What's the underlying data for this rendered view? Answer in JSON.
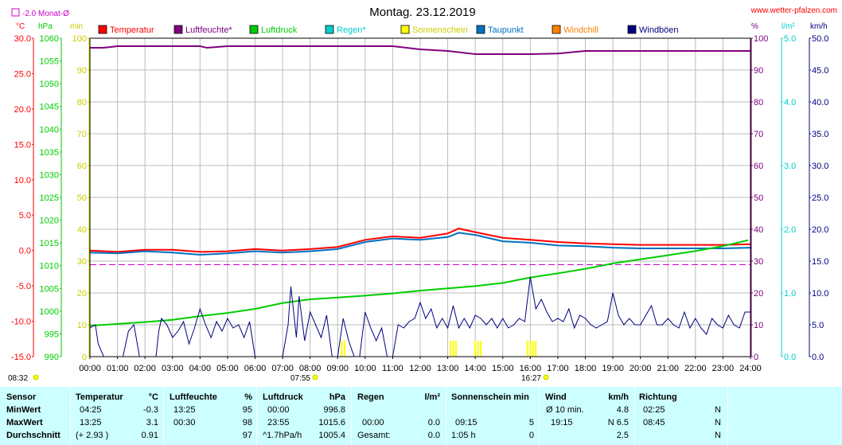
{
  "header": {
    "title": "Montag. 23.12.2019",
    "website": "www.wetter-pfalzen.com",
    "monthly_avg_label": "-2.0 Monat-Ø"
  },
  "axes": {
    "left_units": [
      "°C",
      "hPa",
      "min"
    ],
    "right_units": [
      "%",
      "l/m²",
      "km/h"
    ]
  },
  "legend": [
    {
      "label": "Temperatur",
      "color": "#ff0000"
    },
    {
      "label": "Luftfeuchte*",
      "color": "#800080"
    },
    {
      "label": "Luftdruck",
      "color": "#00cc00"
    },
    {
      "label": "Regen*",
      "color": "#00cccc"
    },
    {
      "label": "Sonnenschein",
      "color": "#ffff00"
    },
    {
      "label": "Taupunkt",
      "color": "#0070c0"
    },
    {
      "label": "Windchill",
      "color": "#ff8000"
    },
    {
      "label": "Windböen",
      "color": "#000080"
    }
  ],
  "sun": {
    "sunrise": "07:55",
    "sunset": "16:27",
    "daylength": "08:32"
  },
  "chart_data": {
    "type": "line",
    "title": "Montag. 23.12.2019",
    "x_ticks": [
      "00:00",
      "01:00",
      "02:00",
      "03:00",
      "04:00",
      "05:00",
      "06:00",
      "07:00",
      "08:00",
      "09:00",
      "10:00",
      "11:00",
      "12:00",
      "13:00",
      "14:00",
      "15:00",
      "16:00",
      "17:00",
      "18:00",
      "19:00",
      "20:00",
      "21:00",
      "22:00",
      "23:00",
      "24:00"
    ],
    "xlim": [
      0,
      24
    ],
    "axes_ranges": {
      "temperature_c": [
        -15,
        30
      ],
      "pressure_hpa": [
        990,
        1060
      ],
      "sunshine_min": [
        0,
        100
      ],
      "humidity_pct": [
        0,
        100
      ],
      "rain_lm2": [
        0,
        5
      ],
      "wind_kmh": [
        0,
        50
      ]
    },
    "tick_labels": {
      "temperature_c": [
        "30.0",
        "25.0",
        "20.0",
        "15.0",
        "10.0",
        "5.0",
        "0.0",
        "-5.0",
        "-10.0",
        "-15.0"
      ],
      "pressure_hpa": [
        "1060",
        "1055",
        "1050",
        "1045",
        "1040",
        "1035",
        "1030",
        "1025",
        "1020",
        "1015",
        "1010",
        "1005",
        "1000",
        "995",
        "990"
      ],
      "sunshine_min": [
        "100",
        "90",
        "80",
        "70",
        "60",
        "50",
        "40",
        "30",
        "20",
        "10",
        "0"
      ],
      "humidity_pct": [
        "100",
        "90",
        "80",
        "70",
        "60",
        "50",
        "40",
        "30",
        "20",
        "10",
        "0"
      ],
      "rain_lm2": [
        "5.0",
        "4.0",
        "3.0",
        "2.0",
        "1.0",
        "0.0"
      ],
      "wind_kmh": [
        "50.0",
        "45.0",
        "40.0",
        "35.0",
        "30.0",
        "25.0",
        "20.0",
        "15.0",
        "10.0",
        "5.0",
        "0.0"
      ]
    },
    "monthly_avg_temp": -2.0,
    "series": [
      {
        "name": "Temperatur",
        "axis": "temperature_c",
        "color": "#ff0000",
        "x": [
          0,
          1,
          2,
          3,
          4,
          5,
          6,
          7,
          8,
          9,
          10,
          11,
          12,
          13,
          13.4,
          14,
          15,
          16,
          17,
          18,
          19,
          20,
          21,
          22,
          23,
          24
        ],
        "y": [
          0.0,
          -0.2,
          0.1,
          0.1,
          -0.2,
          -0.1,
          0.2,
          0.0,
          0.2,
          0.5,
          1.5,
          2.0,
          1.8,
          2.4,
          3.1,
          2.6,
          1.8,
          1.5,
          1.2,
          1.0,
          0.9,
          0.8,
          0.8,
          0.8,
          0.8,
          0.9
        ]
      },
      {
        "name": "Taupunkt",
        "axis": "temperature_c",
        "color": "#0070c0",
        "x": [
          0,
          1,
          2,
          3,
          4,
          5,
          6,
          7,
          8,
          9,
          10,
          11,
          12,
          13,
          13.4,
          14,
          15,
          16,
          17,
          18,
          19,
          20,
          21,
          22,
          23,
          24
        ],
        "y": [
          -0.3,
          -0.4,
          -0.1,
          -0.3,
          -0.6,
          -0.4,
          -0.1,
          -0.3,
          -0.1,
          0.2,
          1.2,
          1.7,
          1.5,
          1.9,
          2.5,
          2.2,
          1.3,
          1.1,
          0.7,
          0.6,
          0.4,
          0.3,
          0.3,
          0.3,
          0.3,
          0.4
        ]
      },
      {
        "name": "Luftfeuchte",
        "axis": "humidity_pct",
        "color": "#800080",
        "x": [
          0,
          0.5,
          1,
          2,
          3,
          4,
          4.25,
          5,
          6,
          7,
          8,
          9,
          10,
          11,
          11.5,
          12,
          13,
          14,
          14.5,
          15,
          16,
          17,
          18,
          19,
          20,
          21,
          22,
          23,
          24
        ],
        "y": [
          97,
          97,
          97.5,
          97.5,
          97.5,
          97.5,
          97,
          97.5,
          97.5,
          97.5,
          97.5,
          97.5,
          97.5,
          97.5,
          97,
          96.5,
          96,
          95,
          95,
          95,
          95,
          95.2,
          96,
          96,
          96,
          96,
          96,
          96,
          96
        ]
      },
      {
        "name": "Luftdruck",
        "axis": "pressure_hpa",
        "color": "#00cc00",
        "x": [
          0,
          1,
          2,
          3,
          4,
          5,
          6,
          7,
          8,
          9,
          10,
          11,
          12,
          13,
          14,
          15,
          16,
          17,
          18,
          19,
          20,
          21,
          22,
          23,
          23.92
        ],
        "y": [
          996.8,
          997.2,
          997.6,
          998.1,
          998.9,
          999.6,
          1000.5,
          1001.8,
          1002.6,
          1003.0,
          1003.4,
          1003.9,
          1004.5,
          1005.0,
          1005.5,
          1006.2,
          1007.4,
          1008.3,
          1009.3,
          1010.5,
          1011.4,
          1012.3,
          1013.2,
          1014.3,
          1015.6
        ]
      },
      {
        "name": "Windböen",
        "axis": "wind_kmh",
        "color": "#000080",
        "x": [
          0,
          0.2,
          0.3,
          0.5,
          1.2,
          1.4,
          1.6,
          1.8,
          2.0,
          2.4,
          2.5,
          2.6,
          2.8,
          3.0,
          3.2,
          3.4,
          3.6,
          3.8,
          4.0,
          4.2,
          4.4,
          4.6,
          4.8,
          5.0,
          5.2,
          5.4,
          5.6,
          5.8,
          6.0,
          6.2,
          6.4,
          6.6,
          6.8,
          7.0,
          7.2,
          7.3,
          7.5,
          7.6,
          7.8,
          8.0,
          8.2,
          8.4,
          8.6,
          8.8,
          9.0,
          9.2,
          9.4,
          9.6,
          9.8,
          10.0,
          10.2,
          10.4,
          10.6,
          10.8,
          11.0,
          11.2,
          11.4,
          11.6,
          11.8,
          12.0,
          12.2,
          12.4,
          12.6,
          12.8,
          13.0,
          13.2,
          13.4,
          13.6,
          13.8,
          14.0,
          14.2,
          14.4,
          14.6,
          14.8,
          15.0,
          15.2,
          15.4,
          15.6,
          15.8,
          16.0,
          16.2,
          16.4,
          16.6,
          16.8,
          17.0,
          17.2,
          17.4,
          17.6,
          17.8,
          18.0,
          18.2,
          18.4,
          18.6,
          18.8,
          19.0,
          19.2,
          19.4,
          19.6,
          19.8,
          20.0,
          20.2,
          20.4,
          20.6,
          20.8,
          21.0,
          21.2,
          21.4,
          21.6,
          21.8,
          22.0,
          22.2,
          22.4,
          22.6,
          22.8,
          23.0,
          23.2,
          23.4,
          23.6,
          23.8,
          24.0
        ],
        "y": [
          4.5,
          5.0,
          2.0,
          0,
          0,
          4.0,
          5.0,
          0,
          0,
          0,
          4.0,
          6.0,
          5.0,
          3.0,
          4.0,
          5.5,
          2.0,
          4.5,
          7.5,
          5.0,
          3.0,
          5.5,
          4.0,
          6.0,
          4.5,
          5.0,
          3.0,
          5.5,
          0,
          0,
          0,
          0,
          0,
          0,
          5.0,
          11.0,
          3.0,
          9.5,
          2.5,
          7.0,
          5.0,
          3.0,
          6.5,
          0,
          0,
          6.0,
          2.5,
          0,
          0,
          7.0,
          4.5,
          2.5,
          4.5,
          0,
          0,
          5.0,
          4.5,
          5.5,
          6.0,
          8.5,
          6.0,
          7.5,
          4.5,
          6.0,
          4.5,
          8.0,
          4.5,
          6.0,
          4.5,
          6.5,
          6.0,
          5.0,
          6.0,
          4.5,
          6.0,
          4.5,
          5.0,
          6.0,
          5.5,
          12.5,
          7.5,
          9.0,
          7.0,
          5.5,
          6.0,
          5.5,
          7.5,
          4.5,
          6.5,
          6.0,
          5.0,
          4.5,
          5.0,
          5.5,
          10.0,
          6.5,
          5.0,
          6.0,
          5.0,
          5.0,
          6.5,
          8.0,
          5.0,
          5.0,
          6.0,
          5.0,
          4.5,
          7.0,
          4.5,
          6.0,
          4.5,
          3.5,
          6.0,
          5.0,
          4.5,
          6.5,
          5.0,
          4.5,
          7.0,
          7.0
        ]
      },
      {
        "name": "Sonnenschein",
        "axis": "sunshine_min",
        "color": "#ffff00",
        "x": [
          9.15,
          9.25,
          13.1,
          13.2,
          13.3,
          14.0,
          14.1,
          14.2,
          15.9,
          16.0,
          16.1,
          16.2
        ],
        "y": [
          5,
          5,
          5,
          5,
          5,
          5,
          5,
          5,
          5,
          5,
          5,
          5
        ]
      }
    ]
  },
  "table": {
    "headers": {
      "sensor": "Sensor",
      "temperature": "Temperatur",
      "temperature_unit": "°C",
      "humidity": "Luftfeuchte",
      "humidity_unit": "%",
      "pressure": "Luftdruck",
      "pressure_unit": "hPa",
      "rain": "Regen",
      "rain_unit": "l/m²",
      "sun": "Sonnenschein min",
      "wind": "Wind",
      "wind_unit": "km/h",
      "direction": "Richtung"
    },
    "rows": [
      {
        "label": "MinWert",
        "temp_time": "04:25",
        "temp_val": "-0.3",
        "hum_time": "13:25",
        "hum_val": "95",
        "press_time": "00:00",
        "press_val": "996.8",
        "rain_time": "",
        "rain_val": "",
        "sun_time": "",
        "sun_val": "",
        "wind_time": "Ø 10 min.",
        "wind_val": "4.8",
        "dir_time": "02:25",
        "dir_val": "N"
      },
      {
        "label": "MaxWert",
        "temp_time": "13:25",
        "temp_val": "3.1",
        "hum_time": "00:30",
        "hum_val": "98",
        "press_time": "23:55",
        "press_val": "1015.6",
        "rain_time": "00:00",
        "rain_val": "0.0",
        "sun_time": "09:15",
        "sun_val": "5",
        "wind_time": "19:15",
        "wind_val": "N 6.5",
        "dir_time": "08:45",
        "dir_val": "N"
      },
      {
        "label": "Durchschnitt",
        "temp_time": "(+ 2.93 )",
        "temp_val": "0.91",
        "hum_time": "",
        "hum_val": "97",
        "press_time": "^1.7hPa/h",
        "press_val": "1005.4",
        "rain_time": "Gesamt:",
        "rain_val": "0.0",
        "sun_time": "1:05 h",
        "sun_val": "0",
        "wind_time": "",
        "wind_val": "2.5",
        "dir_time": "",
        "dir_val": "N"
      }
    ]
  }
}
